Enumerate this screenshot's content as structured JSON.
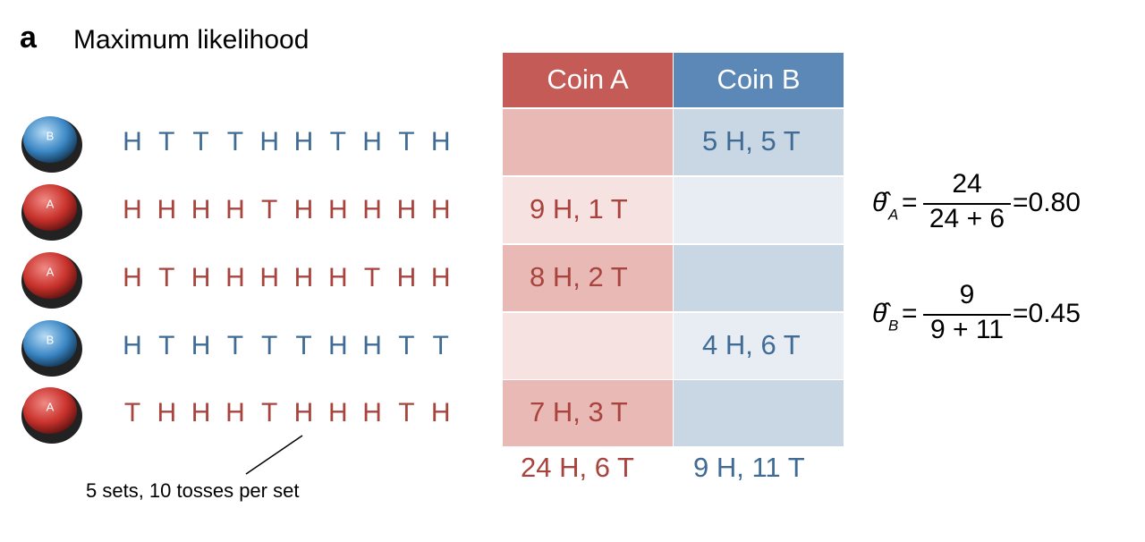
{
  "panel_label": "a",
  "title": "Maximum likelihood",
  "sets": [
    {
      "coin": "B",
      "tosses": [
        "H",
        "T",
        "T",
        "T",
        "H",
        "H",
        "T",
        "H",
        "T",
        "H"
      ]
    },
    {
      "coin": "A",
      "tosses": [
        "H",
        "H",
        "H",
        "H",
        "T",
        "H",
        "H",
        "H",
        "H",
        "H"
      ]
    },
    {
      "coin": "A",
      "tosses": [
        "H",
        "T",
        "H",
        "H",
        "H",
        "H",
        "H",
        "T",
        "H",
        "H"
      ]
    },
    {
      "coin": "B",
      "tosses": [
        "H",
        "T",
        "H",
        "T",
        "T",
        "T",
        "H",
        "H",
        "T",
        "T"
      ]
    },
    {
      "coin": "A",
      "tosses": [
        "T",
        "H",
        "H",
        "H",
        "T",
        "H",
        "H",
        "H",
        "T",
        "H"
      ]
    }
  ],
  "annotation": "5 sets, 10 tosses per set",
  "table": {
    "headers": [
      "Coin A",
      "Coin B"
    ],
    "rows": [
      [
        null,
        "5 H, 5 T"
      ],
      [
        "9 H, 1 T",
        null
      ],
      [
        "8 H, 2 T",
        null
      ],
      [
        null,
        "4 H, 6 T"
      ],
      [
        "7 H, 3 T",
        null
      ]
    ],
    "totals": [
      "24 H, 6 T",
      "9 H, 11 T"
    ]
  },
  "estimates": [
    {
      "symbol": "θ̂",
      "subscript": "A",
      "equals": "=",
      "numerator": "24",
      "denominator": "24 + 6",
      "result": "=0.80"
    },
    {
      "symbol": "θ̂",
      "subscript": "B",
      "equals": "=",
      "numerator": "9",
      "denominator": "9 + 11",
      "result": "=0.45"
    }
  ]
}
